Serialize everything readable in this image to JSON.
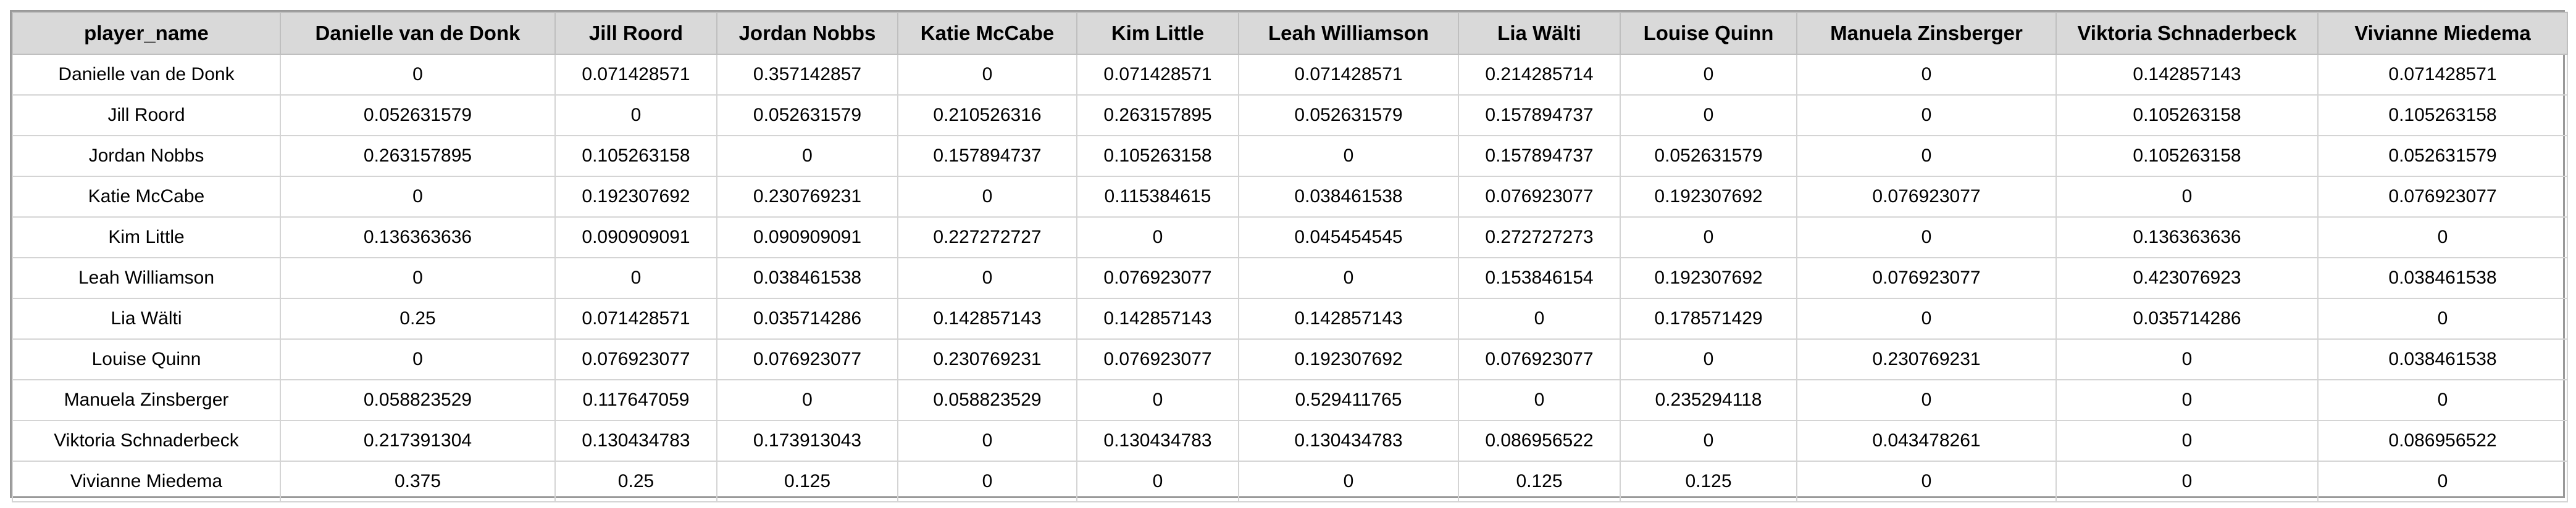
{
  "table": {
    "columns": [
      "player_name",
      "Danielle van de Donk",
      "Jill Roord",
      "Jordan Nobbs",
      "Katie McCabe",
      "Kim Little",
      "Leah Williamson",
      "Lia Wälti",
      "Louise Quinn",
      "Manuela Zinsberger",
      "Viktoria Schnaderbeck",
      "Vivianne Miedema"
    ],
    "rows": [
      [
        "Danielle van de Donk",
        "0",
        "0.071428571",
        "0.357142857",
        "0",
        "0.071428571",
        "0.071428571",
        "0.214285714",
        "0",
        "0",
        "0.142857143",
        "0.071428571"
      ],
      [
        "Jill Roord",
        "0.052631579",
        "0",
        "0.052631579",
        "0.210526316",
        "0.263157895",
        "0.052631579",
        "0.157894737",
        "0",
        "0",
        "0.105263158",
        "0.105263158"
      ],
      [
        "Jordan Nobbs",
        "0.263157895",
        "0.105263158",
        "0",
        "0.157894737",
        "0.105263158",
        "0",
        "0.157894737",
        "0.052631579",
        "0",
        "0.105263158",
        "0.052631579"
      ],
      [
        "Katie McCabe",
        "0",
        "0.192307692",
        "0.230769231",
        "0",
        "0.115384615",
        "0.038461538",
        "0.076923077",
        "0.192307692",
        "0.076923077",
        "0",
        "0.076923077"
      ],
      [
        "Kim Little",
        "0.136363636",
        "0.090909091",
        "0.090909091",
        "0.227272727",
        "0",
        "0.045454545",
        "0.272727273",
        "0",
        "0",
        "0.136363636",
        "0"
      ],
      [
        "Leah Williamson",
        "0",
        "0",
        "0.038461538",
        "0",
        "0.076923077",
        "0",
        "0.153846154",
        "0.192307692",
        "0.076923077",
        "0.423076923",
        "0.038461538"
      ],
      [
        "Lia Wälti",
        "0.25",
        "0.071428571",
        "0.035714286",
        "0.142857143",
        "0.142857143",
        "0.142857143",
        "0",
        "0.178571429",
        "0",
        "0.035714286",
        "0"
      ],
      [
        "Louise Quinn",
        "0",
        "0.076923077",
        "0.076923077",
        "0.230769231",
        "0.076923077",
        "0.192307692",
        "0.076923077",
        "0",
        "0.230769231",
        "0",
        "0.038461538"
      ],
      [
        "Manuela Zinsberger",
        "0.058823529",
        "0.117647059",
        "0",
        "0.058823529",
        "0",
        "0.529411765",
        "0",
        "0.235294118",
        "0",
        "0",
        "0"
      ],
      [
        "Viktoria Schnaderbeck",
        "0.217391304",
        "0.130434783",
        "0.173913043",
        "0",
        "0.130434783",
        "0.130434783",
        "0.086956522",
        "0",
        "0.043478261",
        "0",
        "0.086956522"
      ],
      [
        "Vivianne Miedema",
        "0.375",
        "0.25",
        "0.125",
        "0",
        "0",
        "0",
        "0.125",
        "0.125",
        "0",
        "0",
        "0"
      ]
    ]
  }
}
